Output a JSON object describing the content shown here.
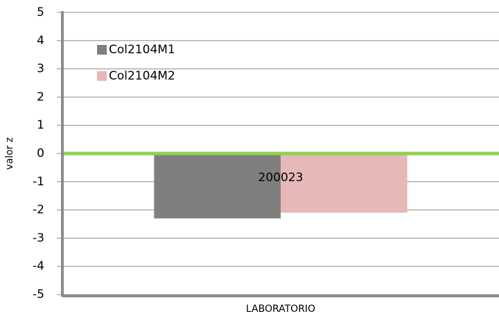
{
  "chart_data": {
    "type": "bar",
    "categories": [
      "200023"
    ],
    "series": [
      {
        "name": "Col2104M1",
        "color": "#7f7f7f",
        "values": [
          -2.3
        ]
      },
      {
        "name": "Col2104M2",
        "color": "#e6b8b7",
        "values": [
          -2.1
        ]
      }
    ],
    "x_label": "LABORATORIO",
    "y_label": "valor z",
    "ylim": [
      -5,
      5
    ],
    "yticks": [
      -5,
      -4,
      -3,
      -2,
      -1,
      0,
      1,
      2,
      3,
      4,
      5
    ],
    "grid": true,
    "legend": "upper-left",
    "reference_line": {
      "value": 0,
      "color": "#92d050"
    }
  }
}
